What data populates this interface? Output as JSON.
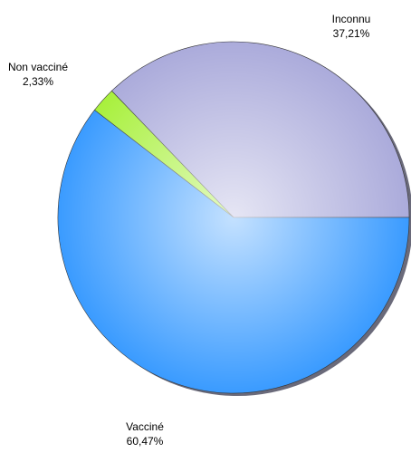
{
  "chart_data": {
    "type": "pie",
    "categories": [
      "Inconnu",
      "Non vacciné",
      "Vacciné"
    ],
    "values": [
      37.21,
      2.33,
      60.47
    ],
    "value_labels": [
      "37,21%",
      "2,33%",
      "60,47%"
    ],
    "colors": [
      "#ababdb",
      "#a8f03c",
      "#3a9bff"
    ]
  }
}
